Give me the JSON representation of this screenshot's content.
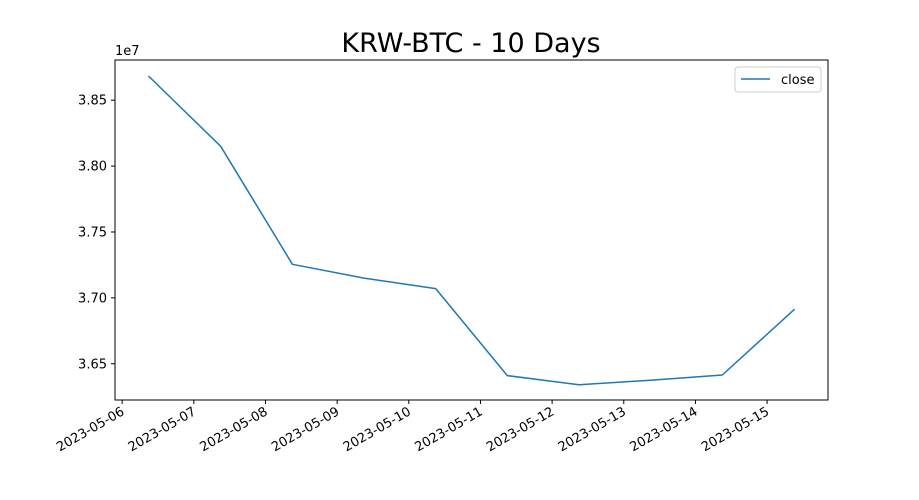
{
  "chart_data": {
    "type": "line",
    "title": "KRW-BTC - 10 Days",
    "xlabel": "",
    "ylabel": "",
    "y_scale_label": "1e7",
    "x": [
      "2023-05-06 09:00",
      "2023-05-07 09:00",
      "2023-05-08 09:00",
      "2023-05-09 09:00",
      "2023-05-10 09:00",
      "2023-05-11 09:00",
      "2023-05-12 09:00",
      "2023-05-13 09:00",
      "2023-05-14 09:00",
      "2023-05-15 09:00"
    ],
    "series": [
      {
        "name": "close",
        "color": "#1f77b4",
        "values": [
          38680000,
          38150000,
          37255000,
          37150000,
          37070000,
          36410000,
          36340000,
          36375000,
          36415000,
          36910000
        ]
      }
    ],
    "xlim": [
      "2023-05-05 21:36",
      "2023-05-15 20:24"
    ],
    "ylim": [
      36225000,
      38805000
    ],
    "x_ticks": [
      "2023-05-06",
      "2023-05-07",
      "2023-05-08",
      "2023-05-09",
      "2023-05-10",
      "2023-05-11",
      "2023-05-12",
      "2023-05-13",
      "2023-05-14",
      "2023-05-15"
    ],
    "y_ticks": [
      36500000,
      37000000,
      37500000,
      38000000,
      38500000
    ],
    "y_tick_labels": [
      "3.65",
      "3.70",
      "3.75",
      "3.80",
      "3.85"
    ],
    "grid": false,
    "legend": "top-right"
  }
}
